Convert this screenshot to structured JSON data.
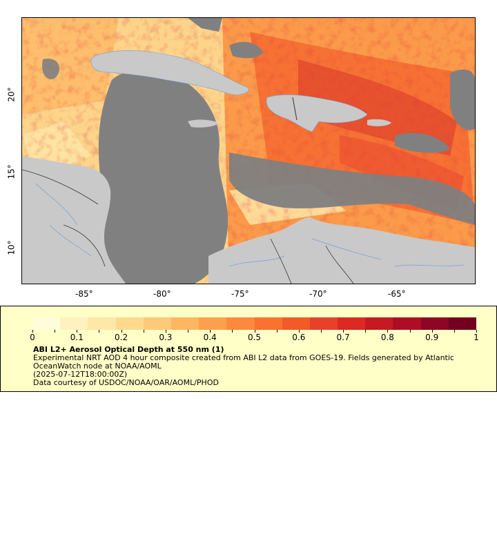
{
  "map": {
    "lon_ticks": [
      "-85°",
      "-80°",
      "-75°",
      "-70°",
      "-65°"
    ],
    "lat_ticks": [
      "20°",
      "15°",
      "10°"
    ],
    "colors": {
      "land": "#c9c9c9",
      "no_data": "#808080",
      "rivers": "#6ea0d8",
      "borders": "#333333"
    }
  },
  "legend": {
    "colorbar_ticks": [
      "0",
      "0.1",
      "0.2",
      "0.3",
      "0.4",
      "0.5",
      "0.6",
      "0.7",
      "0.8",
      "0.9",
      "1"
    ],
    "title": "ABI L2+ Aerosol Optical Depth at 550 nm (1)",
    "description": "Experimental NRT AOD 4 hour composite created from ABI L2 data from GOES-19. Fields generated by Atlantic OceanWatch node at NOAA/AOML",
    "timestamp": "(2025-07-12T18:00:00Z)",
    "credit": "Data courtesy of USDOC/NOAA/OAR/AOML/PHOD",
    "colorbar_colors": [
      "#fffdd8",
      "#fff2c0",
      "#fee8a8",
      "#fed98e",
      "#fec978",
      "#feb660",
      "#fda04e",
      "#fc8a3e",
      "#f9722f",
      "#f25a28",
      "#e8412a",
      "#da2a22",
      "#c51a22",
      "#ad0e26",
      "#8e0526",
      "#730020"
    ]
  }
}
